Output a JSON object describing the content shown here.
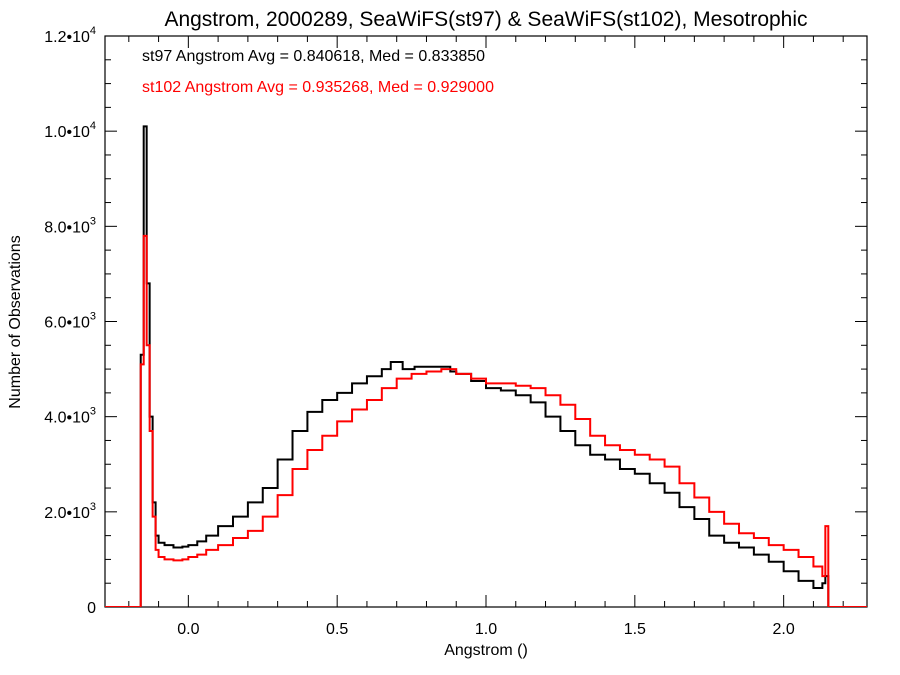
{
  "chart_data": {
    "type": "histogram-step",
    "title": "Angstrom, 2000289, SeaWiFS(st97) & SeaWiFS(st102), Mesotrophic",
    "xlabel": "Angstrom ()",
    "ylabel": "Number of Observations",
    "xlim": [
      -0.28,
      2.28
    ],
    "ylim": [
      0,
      12000
    ],
    "x_ticks": [
      {
        "value": 0.0,
        "label": "0.0"
      },
      {
        "value": 0.5,
        "label": "0.5"
      },
      {
        "value": 1.0,
        "label": "1.0"
      },
      {
        "value": 1.5,
        "label": "1.5"
      },
      {
        "value": 2.0,
        "label": "2.0"
      }
    ],
    "y_ticks": [
      {
        "value": 0,
        "label": "0",
        "mant": "0",
        "exp": ""
      },
      {
        "value": 2000,
        "label": "2.0•10^3",
        "mant": "2.0•10",
        "exp": "3"
      },
      {
        "value": 4000,
        "label": "4.0•10^3",
        "mant": "4.0•10",
        "exp": "3"
      },
      {
        "value": 6000,
        "label": "6.0•10^3",
        "mant": "6.0•10",
        "exp": "3"
      },
      {
        "value": 8000,
        "label": "8.0•10^3",
        "mant": "8.0•10",
        "exp": "3"
      },
      {
        "value": 10000,
        "label": "1.0•10^4",
        "mant": "1.0•10",
        "exp": "4"
      },
      {
        "value": 12000,
        "label": "1.2•10^4",
        "mant": "1.2•10",
        "exp": "4"
      }
    ],
    "annotations": [
      {
        "text": "st97 Angstrom Avg = 0.840618, Med = 0.833850",
        "color": "#000000"
      },
      {
        "text": "st102 Angstrom Avg = 0.935268, Med = 0.929000",
        "color": "#ff0000"
      }
    ],
    "grid": false,
    "series": [
      {
        "name": "st97",
        "color": "#000000",
        "x": [
          -0.3,
          -0.16,
          -0.15,
          -0.14,
          -0.13,
          -0.12,
          -0.11,
          -0.1,
          -0.08,
          -0.05,
          -0.02,
          0.0,
          0.03,
          0.06,
          0.1,
          0.15,
          0.2,
          0.25,
          0.3,
          0.35,
          0.4,
          0.45,
          0.5,
          0.55,
          0.6,
          0.65,
          0.68,
          0.72,
          0.76,
          0.8,
          0.85,
          0.88,
          0.9,
          0.95,
          1.0,
          1.05,
          1.1,
          1.15,
          1.2,
          1.25,
          1.3,
          1.35,
          1.4,
          1.45,
          1.5,
          1.55,
          1.6,
          1.65,
          1.7,
          1.75,
          1.8,
          1.85,
          1.9,
          1.95,
          2.0,
          2.05,
          2.1,
          2.13,
          2.14,
          2.15,
          2.3
        ],
        "y": [
          0,
          5300,
          10100,
          6800,
          4000,
          2200,
          1500,
          1350,
          1300,
          1250,
          1270,
          1300,
          1380,
          1500,
          1700,
          1900,
          2200,
          2500,
          3100,
          3700,
          4100,
          4350,
          4500,
          4700,
          4850,
          5000,
          5150,
          5000,
          5050,
          5050,
          5050,
          4950,
          4900,
          4750,
          4600,
          4550,
          4450,
          4300,
          4000,
          3700,
          3400,
          3200,
          3100,
          2900,
          2800,
          2600,
          2400,
          2100,
          1850,
          1500,
          1350,
          1250,
          1100,
          950,
          750,
          550,
          400,
          500,
          650,
          0,
          0
        ]
      },
      {
        "name": "st102",
        "color": "#ff0000",
        "x": [
          -0.3,
          -0.16,
          -0.15,
          -0.14,
          -0.13,
          -0.12,
          -0.11,
          -0.1,
          -0.08,
          -0.05,
          -0.02,
          0.0,
          0.03,
          0.06,
          0.1,
          0.15,
          0.2,
          0.25,
          0.3,
          0.35,
          0.4,
          0.45,
          0.5,
          0.55,
          0.6,
          0.65,
          0.7,
          0.75,
          0.8,
          0.85,
          0.88,
          0.9,
          0.95,
          1.0,
          1.05,
          1.1,
          1.15,
          1.2,
          1.25,
          1.3,
          1.35,
          1.4,
          1.45,
          1.5,
          1.55,
          1.6,
          1.65,
          1.7,
          1.75,
          1.8,
          1.85,
          1.9,
          1.95,
          2.0,
          2.05,
          2.1,
          2.13,
          2.14,
          2.15,
          2.3
        ],
        "y": [
          0,
          5100,
          7800,
          5500,
          3700,
          1900,
          1200,
          1050,
          1000,
          980,
          1000,
          1050,
          1100,
          1200,
          1300,
          1450,
          1600,
          1900,
          2350,
          2900,
          3300,
          3600,
          3900,
          4150,
          4350,
          4600,
          4800,
          4900,
          4950,
          5000,
          5000,
          4900,
          4800,
          4700,
          4700,
          4650,
          4600,
          4450,
          4250,
          3950,
          3600,
          3400,
          3300,
          3200,
          3100,
          2950,
          2600,
          2300,
          2000,
          1750,
          1550,
          1450,
          1300,
          1200,
          1050,
          850,
          650,
          1700,
          0,
          0
        ]
      }
    ]
  }
}
